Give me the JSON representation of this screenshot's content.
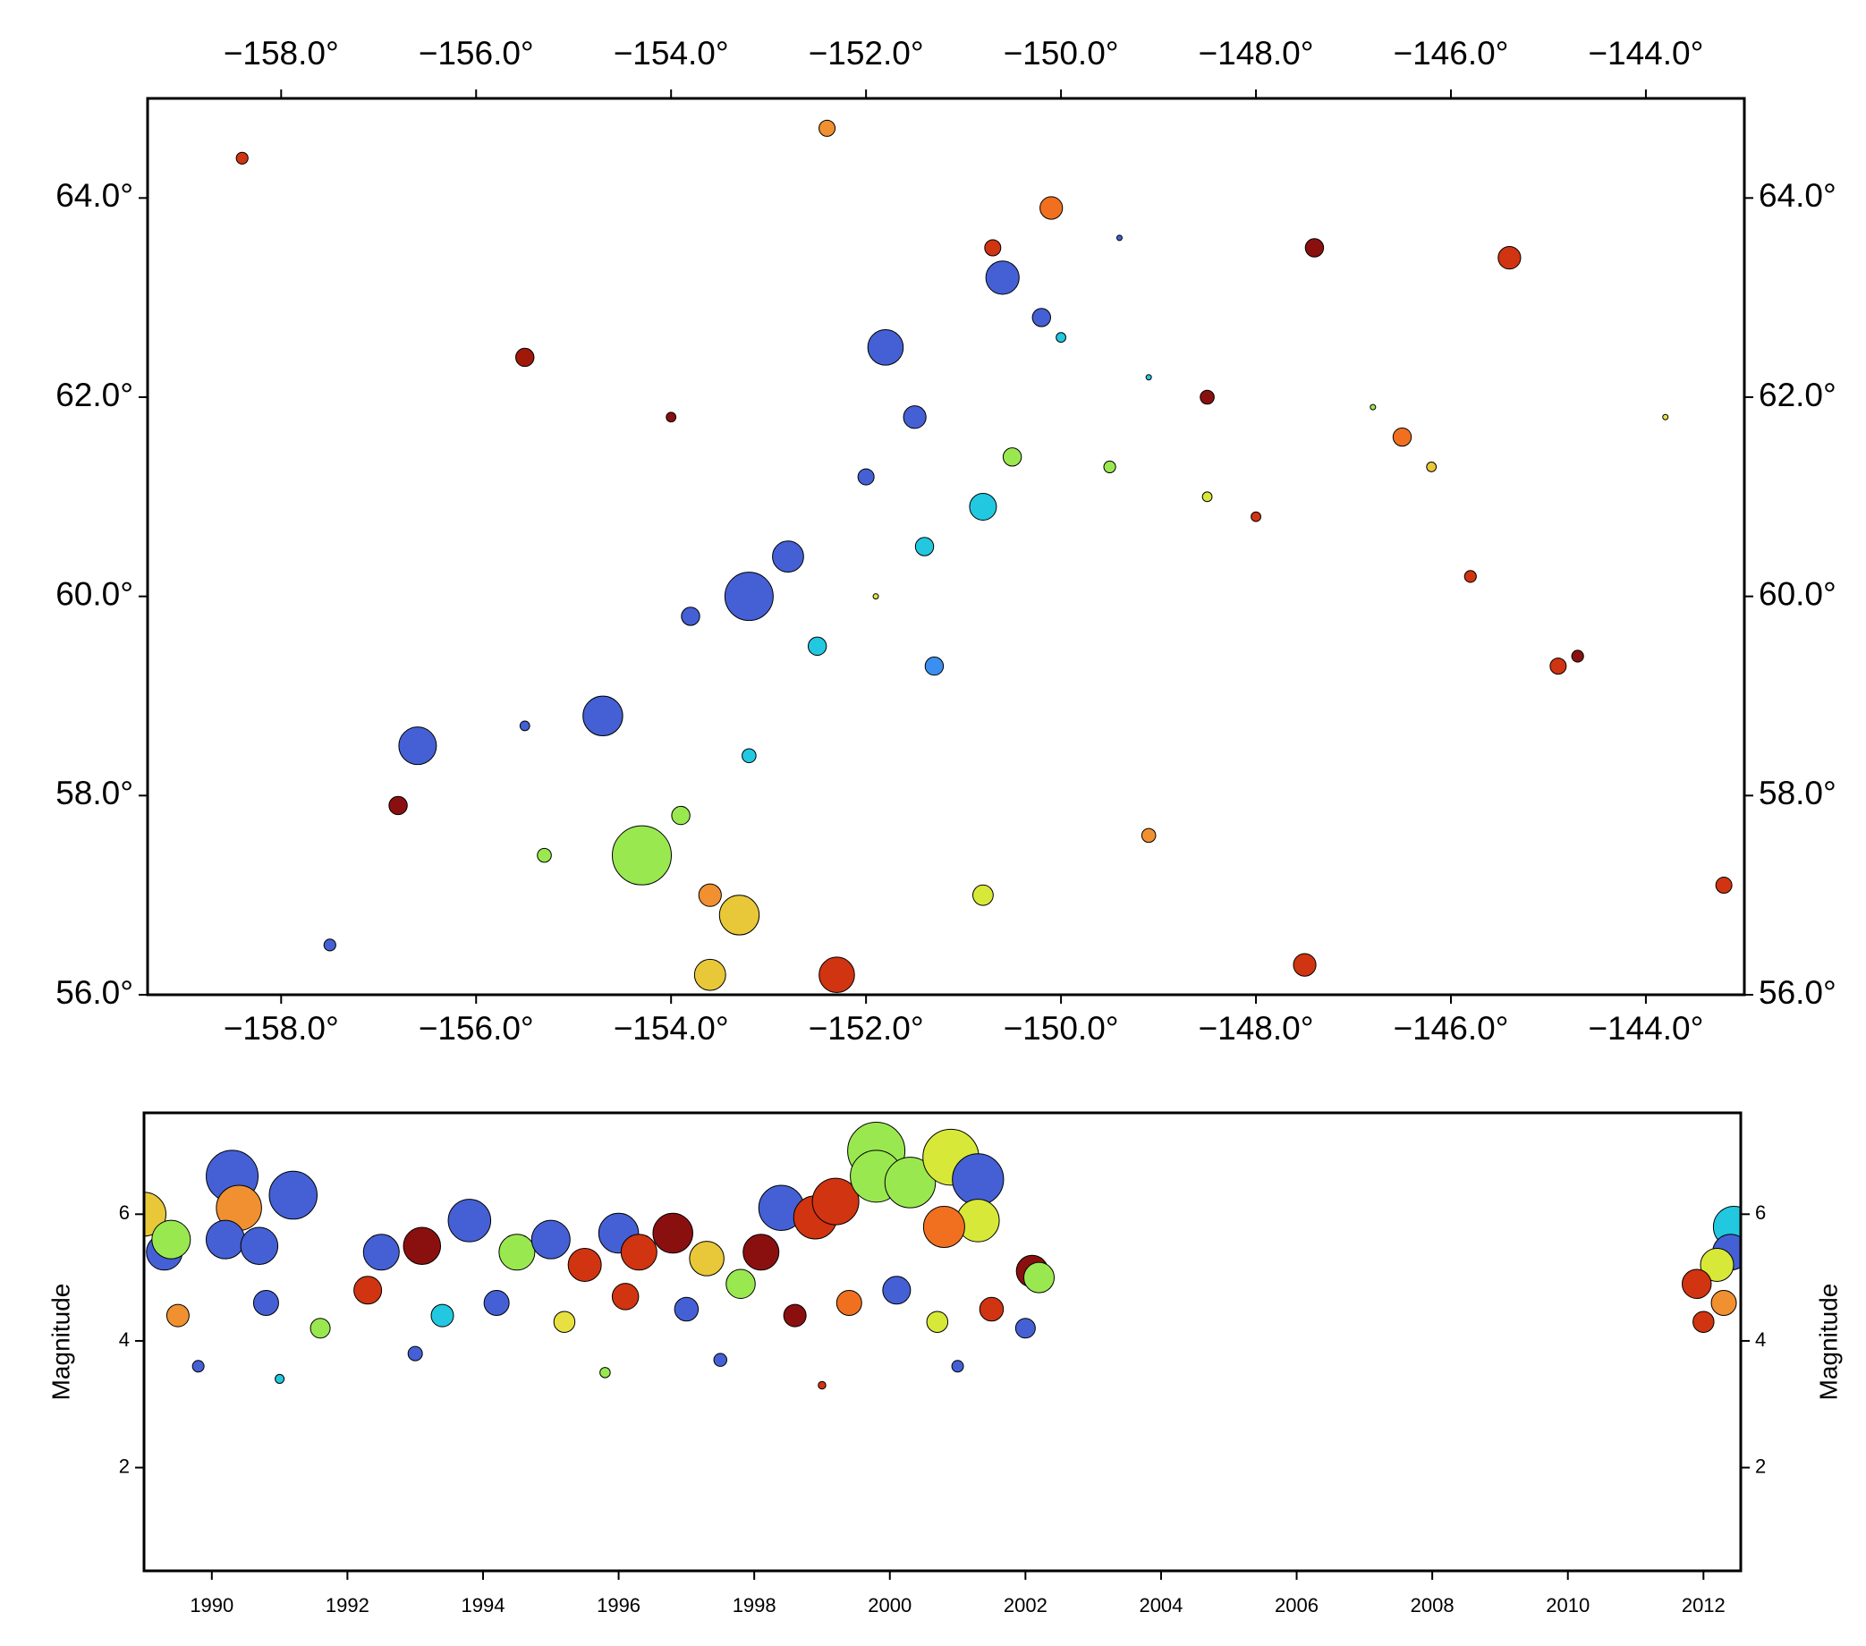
{
  "chart_data": [
    {
      "type": "scatter",
      "xlim": [
        -159.37,
        -142.99
      ],
      "ylim": [
        56,
        65
      ],
      "xticks": [
        {
          "value": -158,
          "label": "−158.0°"
        },
        {
          "value": -156,
          "label": "−156.0°"
        },
        {
          "value": -154,
          "label": "−154.0°"
        },
        {
          "value": -152,
          "label": "−152.0°"
        },
        {
          "value": -150,
          "label": "−150.0°"
        },
        {
          "value": -148,
          "label": "−148.0°"
        },
        {
          "value": -146,
          "label": "−146.0°"
        },
        {
          "value": -144,
          "label": "−144.0°"
        }
      ],
      "yticks": [
        {
          "value": 56,
          "label": "56.0°"
        },
        {
          "value": 58,
          "label": "58.0°"
        },
        {
          "value": 60,
          "label": "60.0°"
        },
        {
          "value": 62,
          "label": "62.0°"
        },
        {
          "value": 64,
          "label": "64.0°"
        }
      ],
      "x": [
        -156.6,
        -154.7,
        -153.2,
        -152.8,
        -151.8,
        -150.6,
        -151.5,
        -152,
        -153.8,
        -150.2,
        -155.5,
        -149.4,
        -151.3,
        -157.5,
        -150.8,
        -151.4,
        -152.5,
        -150,
        -153.2,
        -149.1,
        -154.3,
        -150.5,
        -149.5,
        -153.9,
        -155.3,
        -146.8,
        -150.8,
        -153.3,
        -153.6,
        -148.5,
        -146.2,
        -143.8,
        -151.9,
        -150.1,
        -153.6,
        -146.5,
        -149.1,
        -152.4,
        -145.4,
        -152.3,
        -147.5,
        -145.8,
        -144.9,
        -150.7,
        -158.4,
        -155.5,
        -143.2,
        -148,
        -156.8,
        -147.4,
        -144.7,
        -154,
        -148.5
      ],
      "y": [
        58.5,
        58.8,
        60,
        60.4,
        62.5,
        63.2,
        61.8,
        61.2,
        59.8,
        62.8,
        58.7,
        63.6,
        59.3,
        56.5,
        60.9,
        60.5,
        59.5,
        62.6,
        58.4,
        62.2,
        57.4,
        61.4,
        61.3,
        57.8,
        57.4,
        61.9,
        57,
        56.8,
        56.2,
        61,
        61.3,
        61.8,
        60,
        63.9,
        57,
        61.6,
        57.6,
        64.7,
        63.4,
        56.2,
        56.3,
        60.2,
        59.3,
        63.5,
        64.4,
        62.4,
        57.1,
        60.8,
        57.9,
        63.5,
        59.4,
        61.8,
        62
      ],
      "sizes": [
        5.5,
        5.6,
        6,
        5.2,
        5.4,
        5.3,
        4.8,
        4.5,
        4.6,
        4.6,
        4.2,
        4,
        4.6,
        4.3,
        5,
        4.6,
        4.6,
        4.2,
        4.4,
        4,
        6.5,
        4.6,
        4.3,
        4.6,
        4.4,
        4,
        4.7,
        5.6,
        5.2,
        4.2,
        4.2,
        4,
        4,
        4.8,
        4.8,
        4.6,
        4.4,
        4.5,
        4.8,
        5.4,
        4.8,
        4.3,
        4.5,
        4.5,
        4.3,
        4.6,
        4.5,
        4.2,
        4.6,
        4.6,
        4.3,
        4.2,
        4.4
      ],
      "colors": [
        "#4460d4",
        "#4460d4",
        "#4460d4",
        "#4460d4",
        "#4460d4",
        "#4460d4",
        "#4460d4",
        "#4460d4",
        "#4460d4",
        "#4460d4",
        "#4460d4",
        "#4460d4",
        "#3a8ff0",
        "#4460d4",
        "#22c8e0",
        "#22c8e0",
        "#22c8e0",
        "#22c8e0",
        "#22c8e0",
        "#22c8e0",
        "#9ae850",
        "#9ae850",
        "#9ae850",
        "#9ae850",
        "#9ae850",
        "#9ae850",
        "#d8e838",
        "#e8c838",
        "#e8c838",
        "#d8e838",
        "#e8c838",
        "#e8e040",
        "#e8e040",
        "#f07020",
        "#f09030",
        "#f07020",
        "#f09030",
        "#f09030",
        "#d03410",
        "#d03410",
        "#d03410",
        "#d03410",
        "#d03410",
        "#d03410",
        "#d03410",
        "#a01808",
        "#d03410",
        "#d03410",
        "#8a1010",
        "#8a1010",
        "#8a1010",
        "#8a1010",
        "#8a1010"
      ]
    },
    {
      "type": "scatter",
      "ylabel": "Magnitude",
      "xlim": [
        1989.0,
        2012.55
      ],
      "ylim": [
        0.37,
        7.6
      ],
      "xticks": [
        1990,
        1992,
        1994,
        1996,
        1998,
        2000,
        2002,
        2004,
        2006,
        2008,
        2010,
        2012
      ],
      "yticks": [
        2,
        4,
        6
      ],
      "x": [
        1989.0,
        1989.3,
        1990.3,
        1990.4,
        1990.2,
        1989.4,
        1991.2,
        1990.7,
        1993.1,
        1993.8,
        1994.5,
        1995.0,
        1996.0,
        1996.3,
        1996.8,
        1998.4,
        1998.9,
        1999.2,
        1999.8,
        1999.8,
        2000.3,
        2000.9,
        2001.3,
        2001.3,
        2000.8,
        1998.1,
        2002.1,
        2002.2,
        2012.45,
        2012.4,
        2012.2,
        2011.9,
        1992.5,
        1997.3,
        1995.5,
        1989.5,
        1990.8,
        1991.6,
        1992.3,
        1993.4,
        1994.2,
        1995.2,
        1996.1,
        1997.0,
        1997.8,
        1998.6,
        1999.4,
        2000.1,
        2000.7,
        2001.5,
        2002.0,
        2012.0,
        2012.3,
        1989.8,
        1991.0,
        1993.0,
        1995.8,
        1997.5,
        1999.0,
        2001.0
      ],
      "y": [
        6.0,
        5.4,
        6.6,
        6.1,
        5.6,
        5.6,
        6.3,
        5.5,
        5.5,
        5.9,
        5.4,
        5.6,
        5.7,
        5.4,
        5.7,
        6.1,
        5.95,
        6.2,
        7.0,
        6.6,
        6.5,
        6.9,
        6.55,
        5.9,
        5.8,
        5.4,
        5.1,
        5.0,
        5.8,
        5.4,
        5.2,
        4.9,
        5.4,
        5.3,
        5.2,
        4.4,
        4.6,
        4.2,
        4.8,
        4.4,
        4.6,
        4.3,
        4.7,
        4.5,
        4.9,
        4.4,
        4.6,
        4.8,
        4.3,
        4.5,
        4.2,
        4.3,
        4.6,
        3.6,
        3.4,
        3.8,
        3.5,
        3.7,
        3.3,
        3.6
      ],
      "colors": [
        "#e8c838",
        "#4460d4",
        "#4460d4",
        "#f09030",
        "#4460d4",
        "#9ae850",
        "#4460d4",
        "#4460d4",
        "#8a1010",
        "#4460d4",
        "#9ae850",
        "#4460d4",
        "#4460d4",
        "#d03410",
        "#8a1010",
        "#4460d4",
        "#d03410",
        "#d03410",
        "#9ae850",
        "#9ae850",
        "#9ae850",
        "#d8e838",
        "#4460d4",
        "#d8e838",
        "#f07020",
        "#8a1010",
        "#8a1010",
        "#9ae850",
        "#22c8e0",
        "#4460d4",
        "#d8e838",
        "#d03410",
        "#4460d4",
        "#e8c838",
        "#d03410",
        "#f09030",
        "#4460d4",
        "#9ae850",
        "#d03410",
        "#22c8e0",
        "#4460d4",
        "#e8e040",
        "#d03410",
        "#4460d4",
        "#9ae850",
        "#8a1010",
        "#f07020",
        "#4460d4",
        "#d8e838",
        "#d03410",
        "#4460d4",
        "#d03410",
        "#f09030",
        "#4460d4",
        "#22c8e0",
        "#4460d4",
        "#9ae850",
        "#4460d4",
        "#d03410",
        "#4460d4"
      ]
    }
  ]
}
